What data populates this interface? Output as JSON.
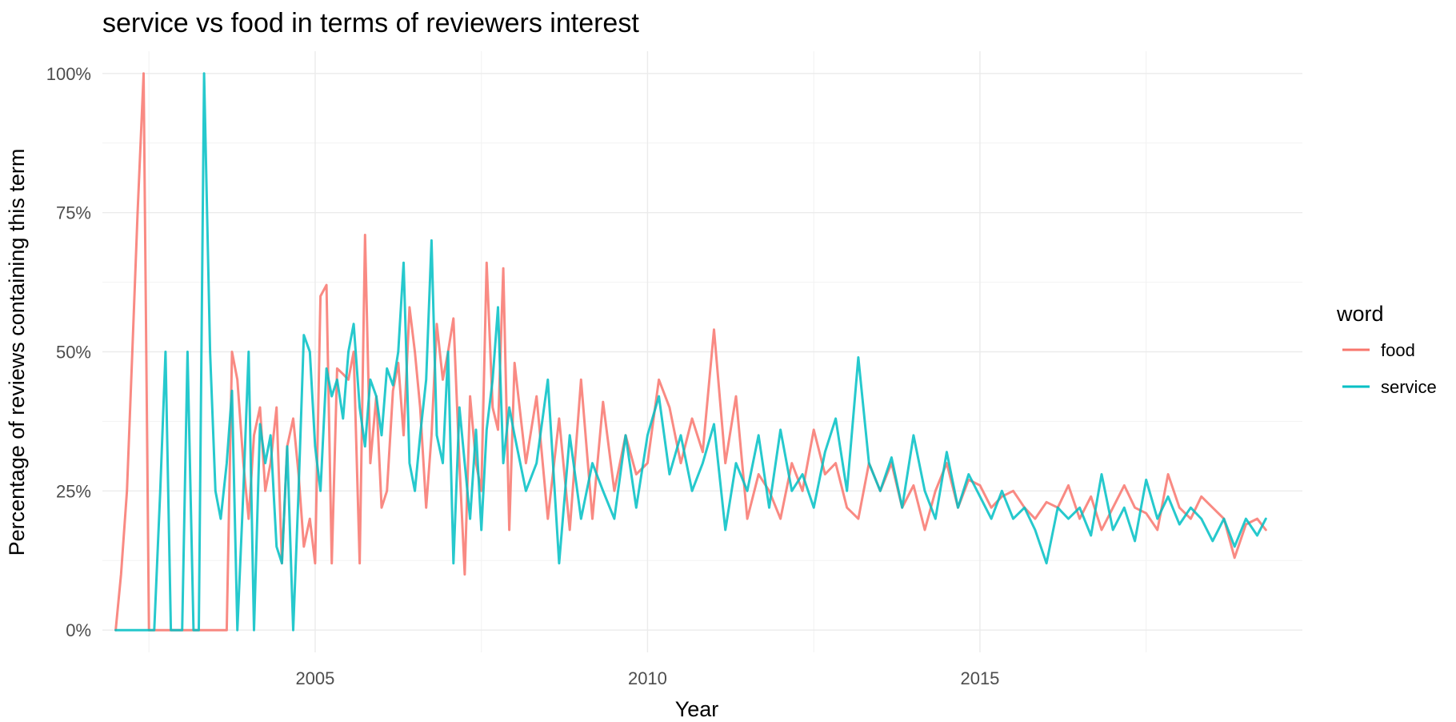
{
  "chart_data": {
    "type": "line",
    "title": "service vs food in terms of reviewers interest",
    "xlabel": "Year",
    "ylabel": "Percentage of reviews containing this term",
    "xlim": [
      2001.8,
      2019.85
    ],
    "ylim": [
      -0.04,
      1.04
    ],
    "x_ticks": [
      2005,
      2010,
      2015
    ],
    "x_tick_labels": [
      "2005",
      "2010",
      "2015"
    ],
    "y_ticks": [
      0,
      0.25,
      0.5,
      0.75,
      1.0
    ],
    "y_tick_labels": [
      "0%",
      "25%",
      "50%",
      "75%",
      "100%"
    ],
    "legend": {
      "title": "word",
      "position": "right",
      "entries": [
        "food",
        "service"
      ]
    },
    "colors": {
      "food": "#F8766D",
      "service": "#00BFC4"
    },
    "series": [
      {
        "name": "food",
        "color": "#F8766D",
        "x": [
          2002.0,
          2002.08,
          2002.17,
          2002.25,
          2002.33,
          2002.42,
          2002.5,
          2002.58,
          2002.67,
          2002.75,
          2002.83,
          2002.92,
          2003.0,
          2003.08,
          2003.17,
          2003.25,
          2003.33,
          2003.42,
          2003.5,
          2003.58,
          2003.67,
          2003.75,
          2003.83,
          2003.92,
          2004.0,
          2004.08,
          2004.17,
          2004.25,
          2004.33,
          2004.42,
          2004.5,
          2004.58,
          2004.67,
          2004.75,
          2004.83,
          2004.92,
          2005.0,
          2005.08,
          2005.17,
          2005.25,
          2005.33,
          2005.42,
          2005.5,
          2005.58,
          2005.67,
          2005.75,
          2005.83,
          2005.92,
          2006.0,
          2006.08,
          2006.17,
          2006.25,
          2006.33,
          2006.42,
          2006.5,
          2006.58,
          2006.67,
          2006.75,
          2006.83,
          2006.92,
          2007.0,
          2007.08,
          2007.17,
          2007.25,
          2007.33,
          2007.42,
          2007.5,
          2007.58,
          2007.67,
          2007.75,
          2007.83,
          2007.92,
          2008.0,
          2008.17,
          2008.33,
          2008.5,
          2008.67,
          2008.83,
          2009.0,
          2009.17,
          2009.33,
          2009.5,
          2009.67,
          2009.83,
          2010.0,
          2010.17,
          2010.33,
          2010.5,
          2010.67,
          2010.83,
          2011.0,
          2011.17,
          2011.33,
          2011.5,
          2011.67,
          2011.83,
          2012.0,
          2012.17,
          2012.33,
          2012.5,
          2012.67,
          2012.83,
          2013.0,
          2013.17,
          2013.33,
          2013.5,
          2013.67,
          2013.83,
          2014.0,
          2014.17,
          2014.33,
          2014.5,
          2014.67,
          2014.83,
          2015.0,
          2015.17,
          2015.33,
          2015.5,
          2015.67,
          2015.83,
          2016.0,
          2016.17,
          2016.33,
          2016.5,
          2016.67,
          2016.83,
          2017.0,
          2017.17,
          2017.33,
          2017.5,
          2017.67,
          2017.83,
          2018.0,
          2018.17,
          2018.33,
          2018.5,
          2018.67,
          2018.83,
          2019.0,
          2019.17,
          2019.3
        ],
        "values": [
          0.0,
          0.1,
          0.25,
          0.5,
          0.75,
          1.0,
          0.0,
          0.0,
          0.0,
          0.0,
          0.0,
          0.0,
          0.0,
          0.0,
          0.0,
          0.0,
          0.0,
          0.0,
          0.0,
          0.0,
          0.0,
          0.5,
          0.45,
          0.3,
          0.2,
          0.35,
          0.4,
          0.25,
          0.3,
          0.4,
          0.12,
          0.33,
          0.38,
          0.28,
          0.15,
          0.2,
          0.12,
          0.6,
          0.62,
          0.12,
          0.47,
          0.46,
          0.45,
          0.5,
          0.12,
          0.71,
          0.3,
          0.42,
          0.22,
          0.25,
          0.43,
          0.48,
          0.35,
          0.58,
          0.5,
          0.4,
          0.22,
          0.35,
          0.55,
          0.45,
          0.5,
          0.56,
          0.3,
          0.1,
          0.42,
          0.3,
          0.25,
          0.66,
          0.4,
          0.36,
          0.65,
          0.18,
          0.48,
          0.3,
          0.42,
          0.2,
          0.38,
          0.18,
          0.45,
          0.2,
          0.41,
          0.25,
          0.35,
          0.28,
          0.3,
          0.45,
          0.4,
          0.3,
          0.38,
          0.32,
          0.54,
          0.3,
          0.42,
          0.2,
          0.28,
          0.25,
          0.2,
          0.3,
          0.25,
          0.36,
          0.28,
          0.3,
          0.22,
          0.2,
          0.3,
          0.25,
          0.3,
          0.22,
          0.26,
          0.18,
          0.25,
          0.3,
          0.22,
          0.27,
          0.26,
          0.22,
          0.24,
          0.25,
          0.22,
          0.2,
          0.23,
          0.22,
          0.26,
          0.2,
          0.24,
          0.18,
          0.22,
          0.26,
          0.22,
          0.21,
          0.18,
          0.28,
          0.22,
          0.2,
          0.24,
          0.22,
          0.2,
          0.13,
          0.19,
          0.2,
          0.18
        ]
      },
      {
        "name": "service",
        "color": "#00BFC4",
        "x": [
          2002.0,
          2002.08,
          2002.17,
          2002.25,
          2002.33,
          2002.42,
          2002.5,
          2002.58,
          2002.67,
          2002.75,
          2002.83,
          2002.92,
          2003.0,
          2003.08,
          2003.17,
          2003.25,
          2003.33,
          2003.42,
          2003.5,
          2003.58,
          2003.67,
          2003.75,
          2003.83,
          2003.92,
          2004.0,
          2004.08,
          2004.17,
          2004.25,
          2004.33,
          2004.42,
          2004.5,
          2004.58,
          2004.67,
          2004.75,
          2004.83,
          2004.92,
          2005.0,
          2005.08,
          2005.17,
          2005.25,
          2005.33,
          2005.42,
          2005.5,
          2005.58,
          2005.67,
          2005.75,
          2005.83,
          2005.92,
          2006.0,
          2006.08,
          2006.17,
          2006.25,
          2006.33,
          2006.42,
          2006.5,
          2006.58,
          2006.67,
          2006.75,
          2006.83,
          2006.92,
          2007.0,
          2007.08,
          2007.17,
          2007.25,
          2007.33,
          2007.42,
          2007.5,
          2007.58,
          2007.67,
          2007.75,
          2007.83,
          2007.92,
          2008.0,
          2008.17,
          2008.33,
          2008.5,
          2008.67,
          2008.83,
          2009.0,
          2009.17,
          2009.33,
          2009.5,
          2009.67,
          2009.83,
          2010.0,
          2010.17,
          2010.33,
          2010.5,
          2010.67,
          2010.83,
          2011.0,
          2011.17,
          2011.33,
          2011.5,
          2011.67,
          2011.83,
          2012.0,
          2012.17,
          2012.33,
          2012.5,
          2012.67,
          2012.83,
          2013.0,
          2013.17,
          2013.33,
          2013.5,
          2013.67,
          2013.83,
          2014.0,
          2014.17,
          2014.33,
          2014.5,
          2014.67,
          2014.83,
          2015.0,
          2015.17,
          2015.33,
          2015.5,
          2015.67,
          2015.83,
          2016.0,
          2016.17,
          2016.33,
          2016.5,
          2016.67,
          2016.83,
          2017.0,
          2017.17,
          2017.33,
          2017.5,
          2017.67,
          2017.83,
          2018.0,
          2018.17,
          2018.33,
          2018.5,
          2018.67,
          2018.83,
          2019.0,
          2019.17,
          2019.3
        ],
        "values": [
          0.0,
          0.0,
          0.0,
          0.0,
          0.0,
          0.0,
          0.0,
          0.0,
          0.25,
          0.5,
          0.0,
          0.0,
          0.0,
          0.5,
          0.0,
          0.0,
          1.0,
          0.5,
          0.25,
          0.2,
          0.3,
          0.43,
          0.0,
          0.25,
          0.5,
          0.0,
          0.37,
          0.3,
          0.35,
          0.15,
          0.12,
          0.33,
          0.0,
          0.25,
          0.53,
          0.5,
          0.33,
          0.25,
          0.47,
          0.42,
          0.45,
          0.38,
          0.5,
          0.55,
          0.4,
          0.33,
          0.45,
          0.42,
          0.35,
          0.47,
          0.44,
          0.5,
          0.66,
          0.3,
          0.25,
          0.35,
          0.45,
          0.7,
          0.35,
          0.3,
          0.5,
          0.12,
          0.4,
          0.3,
          0.2,
          0.36,
          0.18,
          0.36,
          0.45,
          0.58,
          0.3,
          0.4,
          0.35,
          0.25,
          0.3,
          0.45,
          0.12,
          0.35,
          0.2,
          0.3,
          0.25,
          0.2,
          0.35,
          0.22,
          0.35,
          0.42,
          0.28,
          0.35,
          0.25,
          0.3,
          0.37,
          0.18,
          0.3,
          0.25,
          0.35,
          0.22,
          0.36,
          0.25,
          0.28,
          0.22,
          0.32,
          0.38,
          0.25,
          0.49,
          0.3,
          0.25,
          0.31,
          0.22,
          0.35,
          0.25,
          0.2,
          0.32,
          0.22,
          0.28,
          0.24,
          0.2,
          0.25,
          0.2,
          0.22,
          0.18,
          0.12,
          0.22,
          0.2,
          0.22,
          0.17,
          0.28,
          0.18,
          0.22,
          0.16,
          0.27,
          0.2,
          0.24,
          0.19,
          0.22,
          0.2,
          0.16,
          0.2,
          0.15,
          0.2,
          0.17,
          0.2
        ]
      }
    ]
  }
}
